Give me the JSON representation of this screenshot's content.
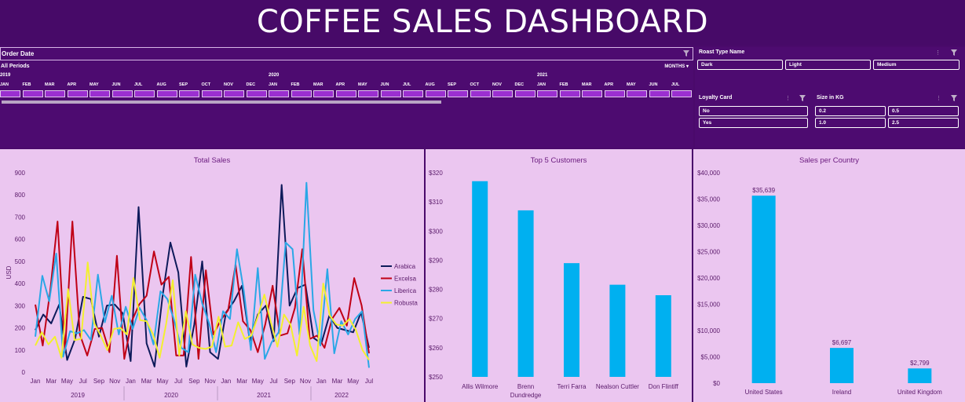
{
  "title": "COFFEE SALES DASHBOARD",
  "timeline": {
    "label": "Order Date",
    "period": "All Periods",
    "granularity": "MONTHS",
    "years": [
      "2019",
      "2020",
      "2021"
    ],
    "months": [
      "JAN",
      "FEB",
      "MAR",
      "APR",
      "MAY",
      "JUN",
      "JUL",
      "AUG",
      "SEP",
      "OCT",
      "NOV",
      "DEC",
      "JAN",
      "FEB",
      "MAR",
      "APR",
      "MAY",
      "JUN",
      "JUL",
      "AUG",
      "SEP",
      "OCT",
      "NOV",
      "DEC",
      "JAN",
      "FEB",
      "MAR",
      "APR",
      "MAY",
      "JUN",
      "JUL"
    ]
  },
  "roast_slicer": {
    "label": "Roast Type Name",
    "items": [
      "Dark",
      "Light",
      "Medium"
    ]
  },
  "loyalty_slicer": {
    "label": "Loyalty Card",
    "items": [
      "No",
      "Yes"
    ]
  },
  "size_slicer": {
    "label": "Size in KG",
    "items": [
      "0.2",
      "0.5",
      "1.0",
      "2.5"
    ]
  },
  "colors": {
    "arabica": "#0d1a5a",
    "excelsa": "#c00016",
    "liberica": "#2aa7e6",
    "robusta": "#f3f02e",
    "bar": "#00b0f0",
    "panel": "#ebc6f0",
    "title_text": "#6a1a7e"
  },
  "chart_data": [
    {
      "type": "line",
      "title": "Total Sales",
      "ylabel": "USD",
      "ylim": [
        0,
        900
      ],
      "yticks": [
        "0",
        "100",
        "200",
        "300",
        "400",
        "500",
        "600",
        "700",
        "800",
        "900"
      ],
      "xtick_labels": [
        "Jan",
        "Mar",
        "May",
        "Jul",
        "Sep",
        "Nov",
        "Jan",
        "Mar",
        "May",
        "Jul",
        "Sep",
        "Nov",
        "Jan",
        "Mar",
        "May",
        "Jul",
        "Sep",
        "Nov",
        "Jan",
        "Mar",
        "May",
        "Jul"
      ],
      "year_labels": [
        "2019",
        "2020",
        "2021",
        "2022"
      ],
      "series": [
        {
          "name": "Arabica",
          "values": [
            190,
            260,
            220,
            305,
            55,
            150,
            340,
            330,
            160,
            300,
            305,
            265,
            50,
            745,
            130,
            25,
            340,
            585,
            450,
            25,
            215,
            500,
            90,
            60,
            270,
            320,
            390,
            140,
            260,
            300,
            140,
            845,
            300,
            380,
            395,
            155,
            130,
            255,
            200,
            190,
            180,
            270,
            110
          ]
        },
        {
          "name": "Excelsa",
          "values": [
            305,
            120,
            365,
            680,
            90,
            680,
            170,
            75,
            195,
            200,
            90,
            525,
            60,
            230,
            305,
            345,
            545,
            395,
            430,
            75,
            75,
            520,
            60,
            460,
            170,
            235,
            280,
            485,
            230,
            190,
            90,
            215,
            390,
            165,
            175,
            290,
            555,
            150,
            165,
            110,
            240,
            290,
            210,
            425,
            300,
            85
          ]
        },
        {
          "name": "Liberica",
          "values": [
            160,
            435,
            320,
            535,
            70,
            185,
            175,
            190,
            145,
            440,
            225,
            345,
            170,
            295,
            195,
            290,
            235,
            125,
            365,
            330,
            230,
            110,
            90,
            440,
            310,
            220,
            90,
            275,
            240,
            555,
            365,
            100,
            470,
            60,
            135,
            180,
            585,
            555,
            170,
            855,
            280,
            120,
            465,
            85,
            230,
            170,
            240,
            275,
            20
          ]
        },
        {
          "name": "Robusta",
          "values": [
            120,
            180,
            125,
            160,
            65,
            375,
            145,
            150,
            495,
            220,
            165,
            100,
            195,
            200,
            170,
            425,
            235,
            230,
            170,
            65,
            220,
            415,
            75,
            275,
            125,
            110,
            105,
            115,
            250,
            115,
            120,
            225,
            150,
            165,
            250,
            350,
            225,
            115,
            260,
            215,
            75,
            295,
            120,
            50,
            400,
            255,
            215,
            210,
            240,
            190,
            100,
            55
          ]
        }
      ]
    },
    {
      "type": "bar",
      "title": "Top 5 Customers",
      "categories": [
        "Allis Wilmore",
        "Brenn Dundredge",
        "Terri Farra",
        "Nealson Cuttler",
        "Don Flintiff"
      ],
      "category_lines": [
        [
          "Allis Wilmore"
        ],
        [
          "Brenn",
          "Dundredge"
        ],
        [
          "Terri Farra"
        ],
        [
          "Nealson Cuttler"
        ],
        [
          "Don Flintiff"
        ]
      ],
      "values": [
        317.1,
        307.1,
        289.0,
        281.6,
        278.0
      ],
      "ylim": [
        250,
        320
      ],
      "yticks": [
        "$250",
        "$260",
        "$270",
        "$280",
        "$290",
        "$300",
        "$310",
        "$320"
      ]
    },
    {
      "type": "bar",
      "title": "Sales per Country",
      "categories": [
        "United States",
        "Ireland",
        "United Kingdom"
      ],
      "values": [
        35639,
        6697,
        2799
      ],
      "data_labels": [
        "$35,639",
        "$6,697",
        "$2,799"
      ],
      "ylim": [
        0,
        40000
      ],
      "yticks": [
        "$0",
        "$5,000",
        "$10,000",
        "$15,000",
        "$20,000",
        "$25,000",
        "$30,000",
        "$35,000",
        "$40,000"
      ]
    }
  ]
}
